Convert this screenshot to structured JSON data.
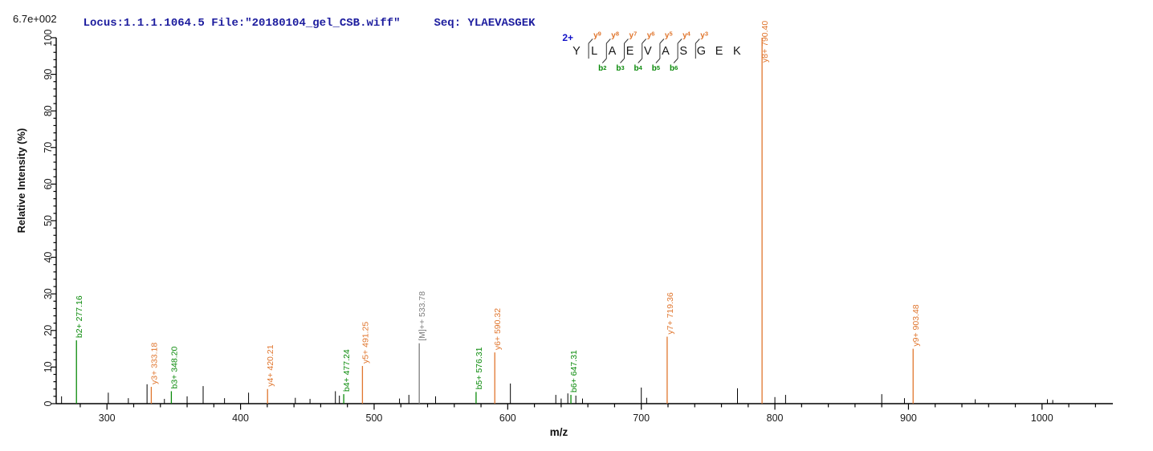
{
  "header": {
    "locus_file": "Locus:1.1.1.1064.5 File:\"20180104_gel_CSB.wiff\"",
    "seq_label": "Seq: YLAEVASGEK",
    "base_intensity": "6.7e+002"
  },
  "colors": {
    "y_ion": "#e0762e",
    "b_ion": "#0a8a0a",
    "precursor": "#7d7d7d",
    "unlabeled_peak": "#000000",
    "header_text": "#1c1c9e",
    "charge_label": "#1212c8",
    "axis": "#000000",
    "residue_text": "#161616"
  },
  "annotation": {
    "charge_label": "2+",
    "residues": [
      "Y",
      "L",
      "A",
      "E",
      "V",
      "A",
      "S",
      "G",
      "E",
      "K"
    ],
    "y_ion_labels": [
      "y9",
      "y8",
      "y7",
      "y6",
      "y5",
      "y4",
      "y3"
    ],
    "b_ion_labels": [
      "b2",
      "b3",
      "b4",
      "b5",
      "b6"
    ]
  },
  "chart_data": {
    "type": "bar",
    "style": "mass-spectrum-stick",
    "title": "",
    "xlabel": "m/z",
    "ylabel": "Relative  Intensity (%)",
    "xlim": [
      262,
      1053
    ],
    "ylim": [
      0,
      100
    ],
    "x_major_ticks": [
      300,
      400,
      500,
      600,
      700,
      800,
      900,
      1000
    ],
    "x_minor_step": 20,
    "y_major_step": 10,
    "y_minor_step": 2,
    "grid": false,
    "legend": false,
    "labeled_peaks": [
      {
        "ion": "b2+",
        "mz": 277.16,
        "intensity": 17.3,
        "label": "b2+ 277.16",
        "series": "b"
      },
      {
        "ion": "y3+",
        "mz": 333.18,
        "intensity": 4.6,
        "label": "y3+ 333.18",
        "series": "y"
      },
      {
        "ion": "b3+",
        "mz": 348.2,
        "intensity": 3.4,
        "label": "b3+ 348.20",
        "series": "b"
      },
      {
        "ion": "y4+",
        "mz": 420.21,
        "intensity": 4.0,
        "label": "y4+ 420.21",
        "series": "y"
      },
      {
        "ion": "b4+",
        "mz": 477.24,
        "intensity": 2.6,
        "label": "b4+ 477.24",
        "series": "b"
      },
      {
        "ion": "y5+",
        "mz": 491.25,
        "intensity": 10.3,
        "label": "y5+ 491.25",
        "series": "y"
      },
      {
        "ion": "[M]++",
        "mz": 533.78,
        "intensity": 16.5,
        "label": "[M]++ 533.78",
        "series": "precursor"
      },
      {
        "ion": "b5+",
        "mz": 576.31,
        "intensity": 3.2,
        "label": "b5+ 576.31",
        "series": "b"
      },
      {
        "ion": "y6+",
        "mz": 590.32,
        "intensity": 14.0,
        "label": "y6+ 590.32",
        "series": "y"
      },
      {
        "ion": "b6+",
        "mz": 647.31,
        "intensity": 2.4,
        "label": "b6+ 647.31",
        "series": "b"
      },
      {
        "ion": "y7+",
        "mz": 719.36,
        "intensity": 18.3,
        "label": "y7+ 719.36",
        "series": "y"
      },
      {
        "ion": "y8+",
        "mz": 790.4,
        "intensity": 100,
        "label": "y8+ 790.40",
        "series": "y"
      },
      {
        "ion": "y9+",
        "mz": 903.48,
        "intensity": 15.0,
        "label": "y9+ 903.48",
        "series": "y"
      }
    ],
    "unlabeled_peaks": [
      [
        266,
        2.0
      ],
      [
        301,
        3.0
      ],
      [
        316,
        1.5
      ],
      [
        330,
        5.3
      ],
      [
        343,
        1.3
      ],
      [
        360,
        2.0
      ],
      [
        372,
        4.8
      ],
      [
        388,
        1.5
      ],
      [
        406,
        3.0
      ],
      [
        441,
        1.6
      ],
      [
        452,
        1.3
      ],
      [
        471,
        3.4
      ],
      [
        474,
        2.2
      ],
      [
        519,
        1.4
      ],
      [
        526,
        2.4
      ],
      [
        546,
        2.0
      ],
      [
        602,
        5.5
      ],
      [
        636,
        2.4
      ],
      [
        640,
        1.4
      ],
      [
        645,
        2.8
      ],
      [
        651,
        2.2
      ],
      [
        656,
        1.4
      ],
      [
        700,
        4.4
      ],
      [
        704,
        1.6
      ],
      [
        772,
        4.2
      ],
      [
        800,
        1.8
      ],
      [
        808,
        2.4
      ],
      [
        880,
        2.6
      ],
      [
        897,
        1.5
      ],
      [
        950,
        1.2
      ],
      [
        1004,
        1.2
      ],
      [
        1008,
        1.0
      ]
    ]
  }
}
